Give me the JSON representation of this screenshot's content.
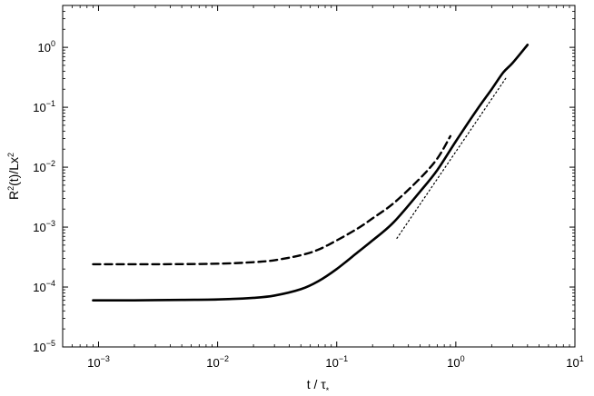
{
  "chart_data": {
    "type": "line",
    "xscale": "log",
    "yscale": "log",
    "xlim": [
      0.0005,
      10
    ],
    "ylim": [
      1e-05,
      5
    ],
    "xlabel": "t / τ*",
    "ylabel": "R²(t)/Lx²",
    "grid": false,
    "legend": "none",
    "x_ticks": [
      {
        "base": "10",
        "exp": "−3",
        "value": 0.001
      },
      {
        "base": "10",
        "exp": "−2",
        "value": 0.01
      },
      {
        "base": "10",
        "exp": "−1",
        "value": 0.1
      },
      {
        "base": "10",
        "exp": "0",
        "value": 1
      },
      {
        "base": "10",
        "exp": "1",
        "value": 10
      }
    ],
    "y_ticks": [
      {
        "base": "10",
        "exp": "−5",
        "value": 1e-05
      },
      {
        "base": "10",
        "exp": "−4",
        "value": 0.0001
      },
      {
        "base": "10",
        "exp": "−3",
        "value": 0.001
      },
      {
        "base": "10",
        "exp": "−2",
        "value": 0.01
      },
      {
        "base": "10",
        "exp": "−1",
        "value": 0.1
      },
      {
        "base": "10",
        "exp": "0",
        "value": 1
      }
    ],
    "series": [
      {
        "style": "solid",
        "color": "#000000",
        "x": [
          0.0009,
          0.002,
          0.005,
          0.01,
          0.02,
          0.03,
          0.05,
          0.07,
          0.1,
          0.15,
          0.2,
          0.3,
          0.5,
          0.7,
          1.0,
          1.5,
          2.0,
          2.5,
          3.0,
          4.0
        ],
        "y": [
          6e-05,
          6e-05,
          6.1e-05,
          6.2e-05,
          6.6e-05,
          7.2e-05,
          9.2e-05,
          0.000125,
          0.0002,
          0.00038,
          0.0006,
          0.0012,
          0.0039,
          0.009,
          0.027,
          0.09,
          0.2,
          0.38,
          0.55,
          1.1
        ]
      },
      {
        "style": "dashed",
        "color": "#000000",
        "x": [
          0.0009,
          0.003,
          0.01,
          0.02,
          0.03,
          0.05,
          0.07,
          0.1,
          0.15,
          0.2,
          0.3,
          0.5,
          0.7,
          0.9
        ],
        "y": [
          0.00024,
          0.00024,
          0.000245,
          0.00026,
          0.00028,
          0.00034,
          0.00042,
          0.0006,
          0.00095,
          0.0014,
          0.0025,
          0.0065,
          0.014,
          0.033
        ]
      },
      {
        "style": "dotted",
        "color": "#000000",
        "x": [
          0.32,
          2.7
        ],
        "y": [
          0.00065,
          0.33
        ]
      }
    ]
  }
}
